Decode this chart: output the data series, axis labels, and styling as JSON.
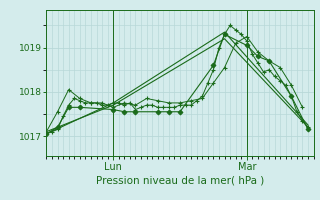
{
  "title": "Pression niveau de la mer( hPa )",
  "bg_color": "#d4ecec",
  "grid_color": "#b8d8d8",
  "line_color": "#1a6b1a",
  "ylim": [
    1016.55,
    1019.85
  ],
  "yticks": [
    1017,
    1018,
    1019
  ],
  "xlabel_lun": "Lun",
  "xlabel_mar": "Mar",
  "x_lun": 12,
  "x_mar": 36,
  "xlim": [
    0,
    48
  ],
  "series": [
    {
      "x": [
        0,
        1,
        2,
        3,
        4,
        5,
        6,
        7,
        8,
        9,
        10,
        11,
        12,
        13,
        14,
        15,
        16,
        17,
        18,
        19,
        20,
        21,
        22,
        23,
        24,
        25,
        26,
        27,
        28,
        29,
        30,
        31,
        32,
        33,
        34,
        35,
        36,
        37,
        38,
        39,
        40,
        41,
        42,
        43,
        44,
        45,
        46,
        47
      ],
      "y": [
        1017.05,
        1017.1,
        1017.15,
        1017.45,
        1017.7,
        1017.85,
        1017.8,
        1017.75,
        1017.75,
        1017.75,
        1017.7,
        1017.7,
        1017.75,
        1017.75,
        1017.7,
        1017.75,
        1017.6,
        1017.65,
        1017.7,
        1017.7,
        1017.65,
        1017.65,
        1017.65,
        1017.65,
        1017.7,
        1017.7,
        1017.7,
        1017.8,
        1017.9,
        1018.2,
        1018.5,
        1019.0,
        1019.3,
        1019.5,
        1019.4,
        1019.3,
        1019.15,
        1018.85,
        1018.65,
        1018.45,
        1018.5,
        1018.35,
        1018.25,
        1018.15,
        1017.9,
        1017.55,
        1017.35,
        1017.2
      ],
      "marker": "+",
      "ms": 3.5
    },
    {
      "x": [
        0,
        2,
        4,
        6,
        8,
        10,
        12,
        14,
        16,
        18,
        20,
        22,
        24,
        26,
        28,
        30,
        32,
        34,
        36,
        38,
        40,
        42,
        44,
        46
      ],
      "y": [
        1017.1,
        1017.55,
        1018.05,
        1017.85,
        1017.75,
        1017.75,
        1017.65,
        1017.75,
        1017.7,
        1017.85,
        1017.8,
        1017.75,
        1017.75,
        1017.8,
        1017.85,
        1018.2,
        1018.55,
        1019.1,
        1019.25,
        1018.9,
        1018.7,
        1018.55,
        1018.15,
        1017.65
      ],
      "marker": "+",
      "ms": 3.5
    },
    {
      "x": [
        0,
        12,
        32,
        47
      ],
      "y": [
        1017.05,
        1017.75,
        1019.35,
        1017.25
      ],
      "marker": null
    },
    {
      "x": [
        0,
        12,
        32,
        47
      ],
      "y": [
        1017.1,
        1017.7,
        1019.2,
        1017.2
      ],
      "marker": null
    },
    {
      "x": [
        0,
        2,
        4,
        6,
        12,
        14,
        16,
        20,
        22,
        24,
        30,
        32,
        36,
        38,
        40,
        44,
        47
      ],
      "y": [
        1017.05,
        1017.2,
        1017.65,
        1017.65,
        1017.6,
        1017.55,
        1017.55,
        1017.55,
        1017.55,
        1017.55,
        1018.6,
        1019.3,
        1019.05,
        1018.8,
        1018.7,
        1017.9,
        1017.15
      ],
      "marker": "D",
      "ms": 2.5
    }
  ]
}
